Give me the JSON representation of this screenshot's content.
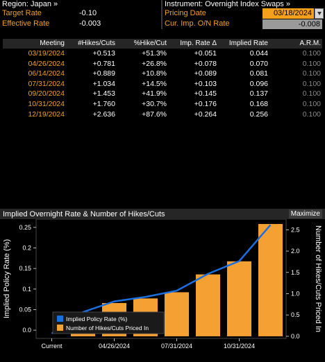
{
  "header": {
    "region_label": "Region: Japan »",
    "target_rate_label": "Target Rate",
    "target_rate_value": "-0.10",
    "effective_rate_label": "Effective Rate",
    "effective_rate_value": "-0.003",
    "instrument_label": "Instrument: Overnight Index Swaps »",
    "pricing_date_label": "Pricing Date",
    "pricing_date_value": "03/18/2024",
    "cur_imp_label": "Cur. Imp. O/N Rate",
    "cur_imp_value": "-0.008"
  },
  "table": {
    "columns": [
      "Meeting",
      "#Hikes/Cuts",
      "%Hike/Cut",
      "Imp. Rate Δ",
      "Implied Rate",
      "A.R.M."
    ],
    "rows": [
      {
        "meeting": "03/19/2024",
        "hikes": "+0.513",
        "pct": "+51.3%",
        "delta": "+0.051",
        "implied": "0.044",
        "arm": "0.100"
      },
      {
        "meeting": "04/26/2024",
        "hikes": "+0.781",
        "pct": "+26.8%",
        "delta": "+0.078",
        "implied": "0.070",
        "arm": "0.100"
      },
      {
        "meeting": "06/14/2024",
        "hikes": "+0.889",
        "pct": "+10.8%",
        "delta": "+0.089",
        "implied": "0.081",
        "arm": "0.100"
      },
      {
        "meeting": "07/31/2024",
        "hikes": "+1.034",
        "pct": "+14.5%",
        "delta": "+0.103",
        "implied": "0.096",
        "arm": "0.100"
      },
      {
        "meeting": "09/20/2024",
        "hikes": "+1.453",
        "pct": "+41.9%",
        "delta": "+0.145",
        "implied": "0.137",
        "arm": "0.100"
      },
      {
        "meeting": "10/31/2024",
        "hikes": "+1.760",
        "pct": "+30.7%",
        "delta": "+0.176",
        "implied": "0.168",
        "arm": "0.100"
      },
      {
        "meeting": "12/19/2024",
        "hikes": "+2.636",
        "pct": "+87.6%",
        "delta": "+0.264",
        "implied": "0.256",
        "arm": "0.100"
      }
    ]
  },
  "chart_panel": {
    "title": "Implied Overnight Rate & Number of Hikes/Cuts",
    "maximize_label": "Maximize"
  },
  "chart_data": {
    "type": "bar",
    "categories": [
      "Current",
      "03/19/2024",
      "04/26/2024",
      "06/14/2024",
      "07/31/2024",
      "09/20/2024",
      "10/31/2024",
      "12/19/2024"
    ],
    "x_tick_labels": [
      "Current",
      "04/26/2024",
      "07/31/2024",
      "10/31/2024"
    ],
    "series": [
      {
        "name": "Implied Policy Rate (%)",
        "kind": "line",
        "axis": "left",
        "color": "#1a6fe0",
        "values": [
          -0.008,
          0.044,
          0.07,
          0.081,
          0.096,
          0.137,
          0.168,
          0.256
        ]
      },
      {
        "name": "Number of Hikes/Cuts Priced In",
        "kind": "bar",
        "axis": "right",
        "color": "#f5a033",
        "values": [
          null,
          0.513,
          0.781,
          0.889,
          1.034,
          1.453,
          1.76,
          2.636
        ]
      }
    ],
    "ylabel": "Implied Policy Rate (%)",
    "ylabel_right": "Number of Hikes/Cuts Priced In",
    "ylim": [
      -0.02,
      0.27
    ],
    "ylim_right": [
      -0.05,
      2.75
    ],
    "yticks": [
      "0.25",
      "0.2",
      "0.15",
      "0.1",
      "0.05",
      "0.0"
    ],
    "yticks_right": [
      "2.5",
      "2.0",
      "1.5",
      "1.0",
      "0.5",
      "0.0"
    ],
    "legend_position": "bottom-left"
  }
}
